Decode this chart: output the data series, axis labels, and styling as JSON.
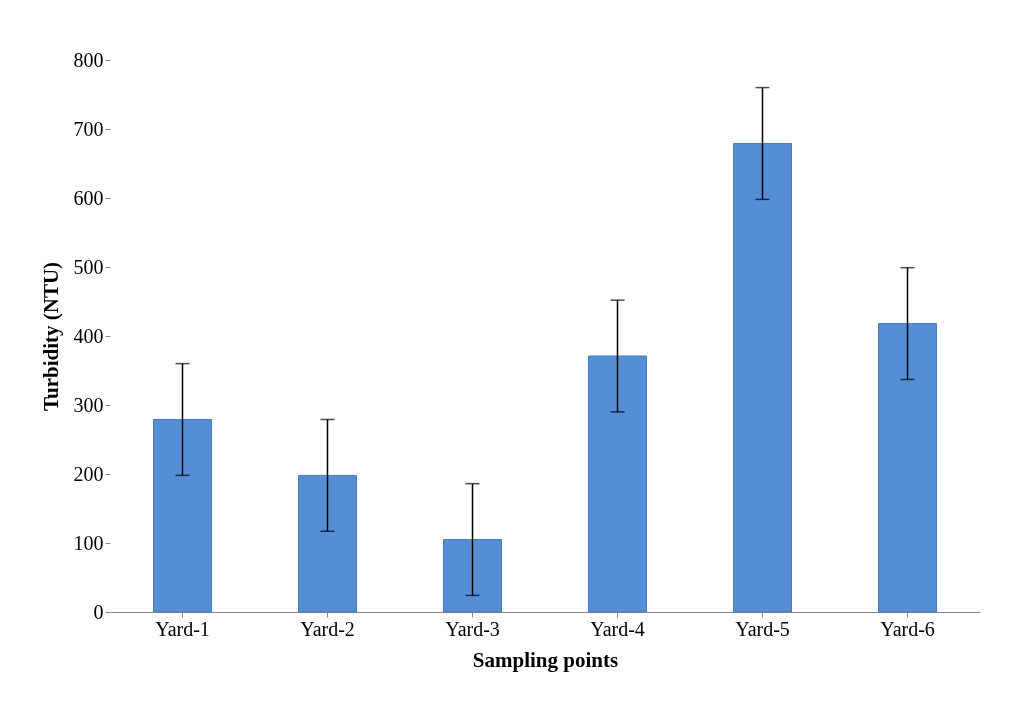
{
  "chart_data": {
    "type": "bar",
    "xlabel": "Sampling points",
    "ylabel": "Turbidity (NTU)",
    "categories": [
      "Yard-1",
      "Yard-2",
      "Yard-3",
      "Yard-4",
      "Yard-5",
      "Yard-6"
    ],
    "values": [
      279,
      198,
      105,
      371,
      679,
      418
    ],
    "errors": [
      81,
      81,
      81,
      81,
      81,
      81
    ],
    "color": "#558ed5",
    "ylim": [
      0,
      800
    ],
    "yticks": [
      0,
      100,
      200,
      300,
      400,
      500,
      600,
      700,
      800
    ],
    "grid": false
  }
}
